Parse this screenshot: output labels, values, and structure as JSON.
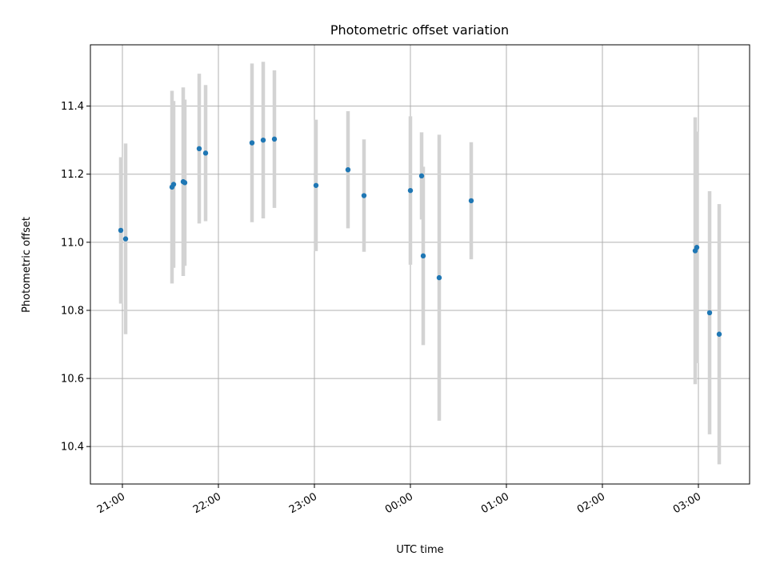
{
  "chart_data": {
    "type": "scatter",
    "title": "Photometric offset variation",
    "xlabel": "UTC time",
    "ylabel": "Photometric offset",
    "x_axis_kind": "time",
    "x_ticks": [
      {
        "value": "2024-01-01T21:00",
        "label": "21:00"
      },
      {
        "value": "2024-01-01T22:00",
        "label": "22:00"
      },
      {
        "value": "2024-01-01T23:00",
        "label": "23:00"
      },
      {
        "value": "2024-01-02T00:00",
        "label": "00:00"
      },
      {
        "value": "2024-01-02T01:00",
        "label": "01:00"
      },
      {
        "value": "2024-01-02T02:00",
        "label": "02:00"
      },
      {
        "value": "2024-01-02T03:00",
        "label": "03:00"
      }
    ],
    "xlim": [
      "2024-01-01T20:40",
      "2024-01-02T03:32"
    ],
    "ylim": [
      10.29,
      11.58
    ],
    "y_ticks": [
      10.4,
      10.6,
      10.8,
      11.0,
      11.2,
      11.4
    ],
    "grid": true,
    "point_color": "#1f77b4",
    "errorbar_color": "#d3d3d3",
    "points": [
      {
        "x": "2024-01-01T20:59",
        "y": 11.035,
        "err": 0.215
      },
      {
        "x": "2024-01-01T21:02",
        "y": 11.01,
        "err": 0.28
      },
      {
        "x": "2024-01-01T21:31",
        "y": 11.162,
        "err": 0.283
      },
      {
        "x": "2024-01-01T21:32",
        "y": 11.17,
        "err": 0.245
      },
      {
        "x": "2024-01-01T21:38",
        "y": 11.178,
        "err": 0.277
      },
      {
        "x": "2024-01-01T21:39",
        "y": 11.175,
        "err": 0.244
      },
      {
        "x": "2024-01-01T21:48",
        "y": 11.275,
        "err": 0.22
      },
      {
        "x": "2024-01-01T21:52",
        "y": 11.262,
        "err": 0.2
      },
      {
        "x": "2024-01-01T22:21",
        "y": 11.292,
        "err": 0.233
      },
      {
        "x": "2024-01-01T22:28",
        "y": 11.3,
        "err": 0.23
      },
      {
        "x": "2024-01-01T22:35",
        "y": 11.303,
        "err": 0.202
      },
      {
        "x": "2024-01-01T23:01",
        "y": 11.167,
        "err": 0.193
      },
      {
        "x": "2024-01-01T23:21",
        "y": 11.213,
        "err": 0.172
      },
      {
        "x": "2024-01-01T23:31",
        "y": 11.137,
        "err": 0.165
      },
      {
        "x": "2024-01-02T00:00",
        "y": 11.152,
        "err": 0.218
      },
      {
        "x": "2024-01-02T00:07",
        "y": 11.195,
        "err": 0.128
      },
      {
        "x": "2024-01-02T00:08",
        "y": 10.96,
        "err": 0.262
      },
      {
        "x": "2024-01-02T00:18",
        "y": 10.896,
        "err": 0.42
      },
      {
        "x": "2024-01-02T00:38",
        "y": 11.122,
        "err": 0.172
      },
      {
        "x": "2024-01-02T02:58",
        "y": 10.975,
        "err": 0.392
      },
      {
        "x": "2024-01-02T02:59",
        "y": 10.985,
        "err": 0.34
      },
      {
        "x": "2024-01-02T03:07",
        "y": 10.793,
        "err": 0.357
      },
      {
        "x": "2024-01-02T03:13",
        "y": 10.73,
        "err": 0.382
      }
    ]
  }
}
